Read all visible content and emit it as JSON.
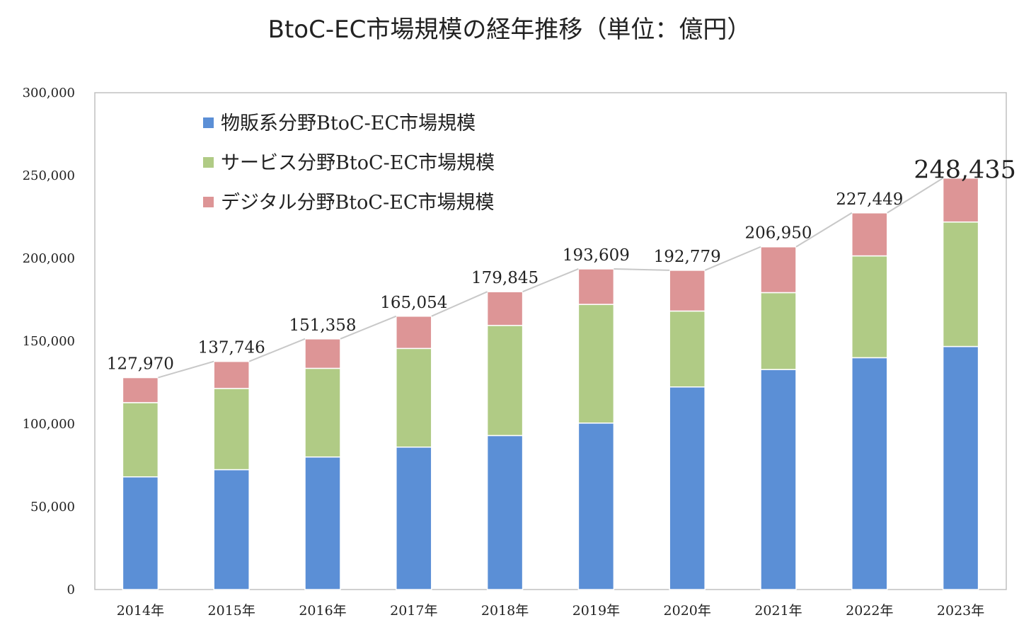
{
  "chart_data": {
    "type": "bar",
    "stacked": true,
    "title": "BtoC-EC市場規模の経年推移（単位：億円）",
    "categories": [
      "2014年",
      "2015年",
      "2016年",
      "2017年",
      "2018年",
      "2019年",
      "2020年",
      "2021年",
      "2022年",
      "2023年"
    ],
    "series": [
      {
        "name": "物販系分野BtoC-EC市場規模",
        "color": "#5b8fd6",
        "values": [
          68042,
          72398,
          80043,
          86008,
          92992,
          100515,
          122333,
          132865,
          139997,
          146760
        ]
      },
      {
        "name": "サービス分野BtoC-EC市場規模",
        "color": "#b0cb85",
        "values": [
          44816,
          49014,
          53532,
          59568,
          66471,
          71672,
          45832,
          46424,
          61477,
          75169
        ]
      },
      {
        "name": "デジタル分野BtoC-EC市場規模",
        "color": "#dd9596",
        "values": [
          15112,
          16334,
          17782,
          19478,
          20382,
          21422,
          24614,
          27661,
          25974,
          26506
        ]
      }
    ],
    "totals": [
      "127,970",
      "137,746",
      "151,358",
      "165,054",
      "179,845",
      "193,609",
      "192,779",
      "206,950",
      "227,449",
      "248,435"
    ],
    "ylim": [
      0,
      300000
    ],
    "yticks": [
      "0",
      "50,000",
      "100,000",
      "150,000",
      "200,000",
      "250,000",
      "300,000"
    ],
    "ytick_values": [
      0,
      50000,
      100000,
      150000,
      200000,
      250000,
      300000
    ],
    "xlabel": "",
    "ylabel": "",
    "legend": "top-left",
    "grid": false,
    "total_line_color": "#c8c8c8",
    "frame_color": "#c0c0c0"
  }
}
